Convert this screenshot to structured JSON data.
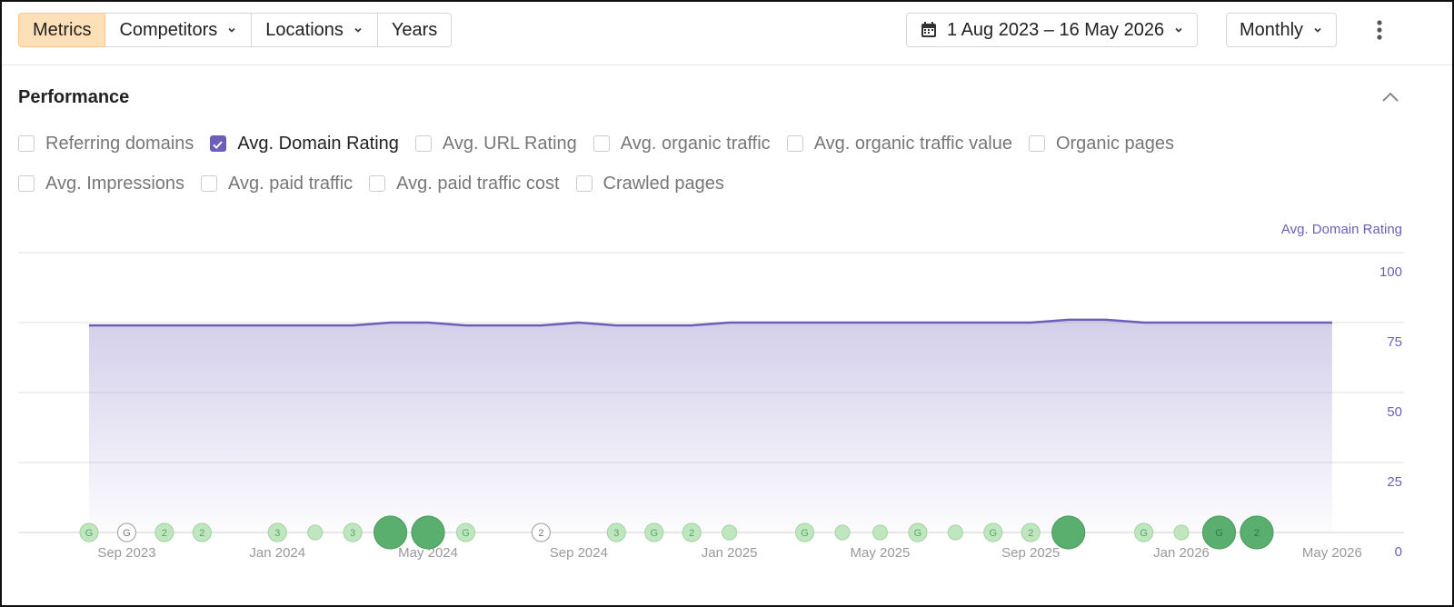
{
  "toolbar": {
    "tabs": [
      {
        "label": "Metrics",
        "active": true,
        "dropdown": false
      },
      {
        "label": "Competitors",
        "active": false,
        "dropdown": true
      },
      {
        "label": "Locations",
        "active": false,
        "dropdown": true
      },
      {
        "label": "Years",
        "active": false,
        "dropdown": false
      }
    ],
    "date_range": "1 Aug 2023 – 16 May 2026",
    "interval": "Monthly"
  },
  "section": {
    "title": "Performance",
    "metrics": [
      {
        "label": "Referring domains",
        "checked": false
      },
      {
        "label": "Avg. Domain Rating",
        "checked": true
      },
      {
        "label": "Avg. URL Rating",
        "checked": false
      },
      {
        "label": "Avg. organic traffic",
        "checked": false
      },
      {
        "label": "Avg. organic traffic value",
        "checked": false
      },
      {
        "label": "Organic pages",
        "checked": false
      },
      {
        "label": "Avg. Impressions",
        "checked": false
      },
      {
        "label": "Avg. paid traffic",
        "checked": false
      },
      {
        "label": "Avg. paid traffic cost",
        "checked": false
      },
      {
        "label": "Crawled pages",
        "checked": false
      }
    ]
  },
  "chart_data": {
    "type": "area",
    "y_axis_label": "Avg. Domain Rating",
    "categories": [
      null,
      "Sep 2023",
      null,
      null,
      null,
      "Jan 2024",
      null,
      null,
      null,
      "May 2024",
      null,
      null,
      null,
      "Sep 2024",
      null,
      null,
      null,
      "Jan 2025",
      null,
      null,
      null,
      "May 2025",
      null,
      null,
      null,
      "Sep 2025",
      null,
      null,
      null,
      "Jan 2026",
      null,
      null,
      null,
      "May 2026"
    ],
    "series": [
      {
        "name": "Avg. Domain Rating",
        "color": "#6c5fb8",
        "values": [
          74,
          74,
          74,
          74,
          74,
          74,
          74,
          74,
          75,
          75,
          74,
          74,
          74,
          75,
          74,
          74,
          74,
          75,
          75,
          75,
          75,
          75,
          75,
          75,
          75,
          75,
          76,
          76,
          75,
          75,
          75,
          75,
          75,
          75
        ]
      }
    ],
    "ylim": [
      0,
      100
    ],
    "yticks": [
      0,
      25,
      50,
      75,
      100
    ],
    "grid": true,
    "events": [
      {
        "at": 0,
        "label": "G"
      },
      {
        "at": 1,
        "label": "G",
        "outline": true
      },
      {
        "at": 2,
        "label": "2"
      },
      {
        "at": 3,
        "label": "2"
      },
      {
        "at": 5,
        "label": "3"
      },
      {
        "at": 6
      },
      {
        "at": 7,
        "label": "3"
      },
      {
        "at": 8,
        "big": true
      },
      {
        "at": 9,
        "big": true
      },
      {
        "at": 10,
        "label": "G"
      },
      {
        "at": 12,
        "label": "2",
        "outline": true
      },
      {
        "at": 14,
        "label": "3"
      },
      {
        "at": 15,
        "label": "G"
      },
      {
        "at": 16,
        "label": "2"
      },
      {
        "at": 17
      },
      {
        "at": 19,
        "label": "G"
      },
      {
        "at": 20
      },
      {
        "at": 21
      },
      {
        "at": 22,
        "label": "G"
      },
      {
        "at": 23
      },
      {
        "at": 24,
        "label": "G"
      },
      {
        "at": 25,
        "label": "2"
      },
      {
        "at": 26,
        "big": true
      },
      {
        "at": 28,
        "label": "G"
      },
      {
        "at": 29
      },
      {
        "at": 30,
        "label": "G",
        "big": true
      },
      {
        "at": 31,
        "label": "2",
        "big": true
      }
    ]
  }
}
